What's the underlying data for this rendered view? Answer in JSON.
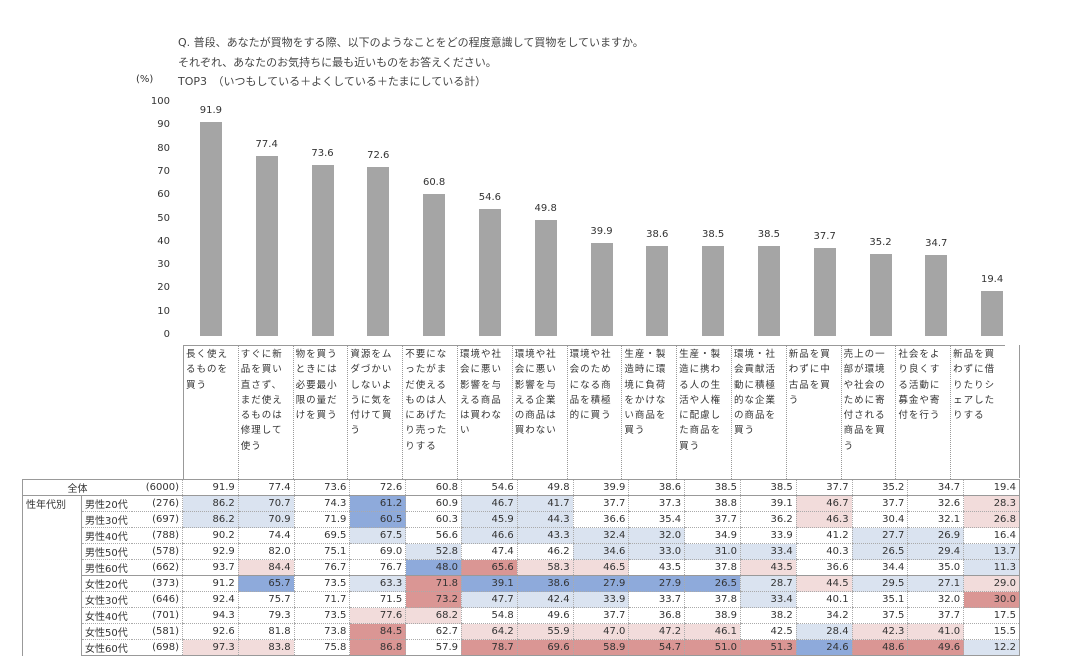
{
  "question": {
    "line1": "Q. 普段、あなたが買物をする際、以下のようなことをどの程度意識して買物をしていますか。",
    "line2": "それぞれ、あなたのお気持ちに最も近いものをお答えください。",
    "line3": "TOP3　（いつもしている＋よくしている＋たまにしている計）"
  },
  "chart_data": {
    "type": "bar",
    "ylabel": "(%)",
    "ylim": [
      0,
      100
    ],
    "yticks": [
      0,
      10,
      20,
      30,
      40,
      50,
      60,
      70,
      80,
      90,
      100
    ],
    "categories": [
      "長く使えるものを買う",
      "すぐに新品を買い直さず、まだ使えるものは修理して使う",
      "物を買うときには必要最小限の量だけを買う",
      "資源をムダづかいしないように気を付けて買う",
      "不要になったがまだ使えるものは人にあげたり売ったりする",
      "環境や社会に悪い影響を与える商品は買わない",
      "環境や社会に悪い影響を与える企業の商品は買わない",
      "環境や社会のためになる商品を積極的に買う",
      "生産・製造時に環境に負荷をかけない商品を買う",
      "生産・製造に携わる人の生活や人権に配慮した商品を買う",
      "環境・社会貢献活動に積極的な企業の商品を買う",
      "新品を買わずに中古品を買う",
      "売上の一部が環境や社会のために寄付される商品を買う",
      "社会をより良くする活動に募金や寄付を行う",
      "新品を買わずに借りたりシェアしたりする"
    ],
    "values": [
      91.9,
      77.4,
      73.6,
      72.6,
      60.8,
      54.6,
      49.8,
      39.9,
      38.6,
      38.5,
      38.5,
      37.7,
      35.2,
      34.7,
      19.4
    ]
  },
  "table": {
    "group_label": "性年代別",
    "rows": [
      {
        "name": "全体",
        "n": "(6000)",
        "values": [
          "91.9",
          "77.4",
          "73.6",
          "72.6",
          "60.8",
          "54.6",
          "49.8",
          "39.9",
          "38.6",
          "38.5",
          "38.5",
          "37.7",
          "35.2",
          "34.7",
          "19.4"
        ],
        "shade": [
          "",
          "",
          "",
          "",
          "",
          "",
          "",
          "",
          "",
          "",
          "",
          "",
          "",
          "",
          ""
        ]
      },
      {
        "name": "男性20代",
        "n": "(276)",
        "values": [
          "86.2",
          "70.7",
          "74.3",
          "61.2",
          "60.9",
          "46.7",
          "41.7",
          "37.7",
          "37.3",
          "38.8",
          "39.1",
          "46.7",
          "37.7",
          "32.6",
          "28.3"
        ],
        "shade": [
          "lb",
          "lb",
          "",
          "db",
          "",
          "lb",
          "lb",
          "",
          "",
          "",
          "",
          "lr",
          "",
          "",
          "lr"
        ]
      },
      {
        "name": "男性30代",
        "n": "(697)",
        "values": [
          "86.2",
          "70.9",
          "71.9",
          "60.5",
          "60.3",
          "45.9",
          "44.3",
          "36.6",
          "35.4",
          "37.7",
          "36.2",
          "46.3",
          "30.4",
          "32.1",
          "26.8"
        ],
        "shade": [
          "lb",
          "lb",
          "",
          "db",
          "",
          "lb",
          "lb",
          "",
          "",
          "",
          "",
          "lr",
          "",
          "",
          "lr"
        ]
      },
      {
        "name": "男性40代",
        "n": "(788)",
        "values": [
          "90.2",
          "74.4",
          "69.5",
          "67.5",
          "56.6",
          "46.6",
          "43.3",
          "32.4",
          "32.0",
          "34.9",
          "33.9",
          "41.2",
          "27.7",
          "26.9",
          "16.4"
        ],
        "shade": [
          "",
          "",
          "",
          "lb",
          "",
          "lb",
          "lb",
          "lb",
          "lb",
          "",
          "",
          "",
          "lb",
          "lb",
          ""
        ]
      },
      {
        "name": "男性50代",
        "n": "(578)",
        "values": [
          "92.9",
          "82.0",
          "75.1",
          "69.0",
          "52.8",
          "47.4",
          "46.2",
          "34.6",
          "33.0",
          "31.0",
          "33.4",
          "40.3",
          "26.5",
          "29.4",
          "13.7"
        ],
        "shade": [
          "",
          "",
          "",
          "",
          "lb",
          "",
          "",
          "lb",
          "lb",
          "lb",
          "lb",
          "",
          "lb",
          "lb",
          "lb"
        ]
      },
      {
        "name": "男性60代",
        "n": "(662)",
        "values": [
          "93.7",
          "84.4",
          "76.7",
          "76.7",
          "48.0",
          "65.6",
          "58.3",
          "46.5",
          "43.5",
          "37.8",
          "43.5",
          "36.6",
          "34.4",
          "35.0",
          "11.3"
        ],
        "shade": [
          "",
          "lr",
          "",
          "",
          "db",
          "dr",
          "lr",
          "lr",
          "",
          "",
          "lr",
          "",
          "",
          "",
          "lb"
        ]
      },
      {
        "name": "女性20代",
        "n": "(373)",
        "values": [
          "91.2",
          "65.7",
          "73.5",
          "63.3",
          "71.8",
          "39.1",
          "38.6",
          "27.9",
          "27.9",
          "26.5",
          "28.7",
          "44.5",
          "29.5",
          "27.1",
          "29.0"
        ],
        "shade": [
          "",
          "db",
          "",
          "lb",
          "dr",
          "db",
          "db",
          "db",
          "db",
          "db",
          "lb",
          "lr",
          "lb",
          "lb",
          "lr"
        ]
      },
      {
        "name": "女性30代",
        "n": "(646)",
        "values": [
          "92.4",
          "75.7",
          "71.7",
          "71.5",
          "73.2",
          "47.7",
          "42.4",
          "33.9",
          "33.7",
          "37.8",
          "33.4",
          "40.1",
          "35.1",
          "32.0",
          "30.0"
        ],
        "shade": [
          "",
          "",
          "",
          "",
          "dr",
          "lb",
          "lb",
          "lb",
          "",
          "",
          "lb",
          "",
          "",
          "",
          "dr"
        ]
      },
      {
        "name": "女性40代",
        "n": "(701)",
        "values": [
          "94.3",
          "79.3",
          "73.5",
          "77.6",
          "68.2",
          "54.8",
          "49.6",
          "37.7",
          "36.8",
          "38.9",
          "38.2",
          "34.2",
          "37.5",
          "37.7",
          "17.5"
        ],
        "shade": [
          "",
          "",
          "",
          "lr",
          "lr",
          "",
          "",
          "",
          "",
          "",
          "",
          "",
          "",
          "",
          ""
        ]
      },
      {
        "name": "女性50代",
        "n": "(581)",
        "values": [
          "92.6",
          "81.8",
          "73.8",
          "84.5",
          "62.7",
          "64.2",
          "55.9",
          "47.0",
          "47.2",
          "46.1",
          "42.5",
          "28.4",
          "42.3",
          "41.0",
          "15.5"
        ],
        "shade": [
          "",
          "",
          "",
          "dr",
          "",
          "lr",
          "lr",
          "lr",
          "lr",
          "lr",
          "",
          "lb",
          "lr",
          "lr",
          ""
        ]
      },
      {
        "name": "女性60代",
        "n": "(698)",
        "values": [
          "97.3",
          "83.8",
          "75.8",
          "86.8",
          "57.9",
          "78.7",
          "69.6",
          "58.9",
          "54.7",
          "51.0",
          "51.3",
          "24.6",
          "48.6",
          "49.6",
          "12.2"
        ],
        "shade": [
          "lr",
          "lr",
          "",
          "dr",
          "",
          "dr",
          "dr",
          "dr",
          "dr",
          "dr",
          "dr",
          "db",
          "dr",
          "dr",
          "lb"
        ]
      }
    ]
  }
}
